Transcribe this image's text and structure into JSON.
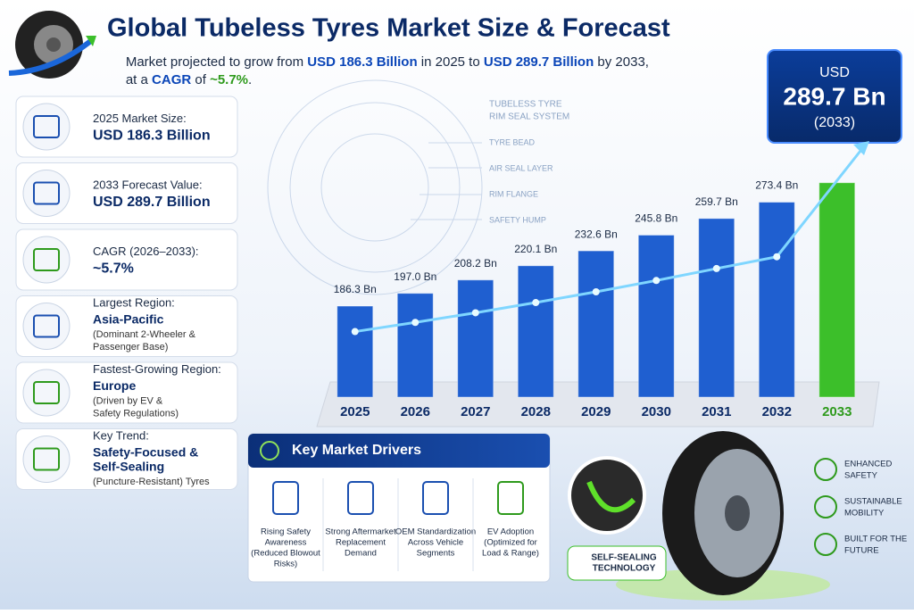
{
  "header": {
    "title": "Global Tubeless Tyres Market Size & Forecast",
    "subtitle_line1": [
      "Market projected to grow from ",
      "USD 186.3 Billion",
      " in 2025 to ",
      "USD 289.7 Billion",
      " by 2033,"
    ],
    "subtitle_line2": [
      "at a ",
      "CAGR",
      " of ",
      "~5.7%",
      "."
    ]
  },
  "cards": [
    {
      "label": "2025 Market Size:",
      "value": [
        "USD 186.3 Billion"
      ],
      "note": []
    },
    {
      "label": "2033 Forecast Value:",
      "value": [
        "USD 289.7 Billion"
      ],
      "note": []
    },
    {
      "label": "CAGR (2026–2033):",
      "value": [
        "~5.7%"
      ],
      "note": []
    },
    {
      "label": "Largest Region:",
      "value": [
        "Asia-Pacific"
      ],
      "note": [
        "(Dominant 2-Wheeler &",
        "Passenger Base)"
      ]
    },
    {
      "label": "Fastest-Growing Region:",
      "value": [
        "Europe"
      ],
      "note": [
        "(Driven by EV &",
        "Safety Regulations)"
      ]
    },
    {
      "label": "Key Trend:",
      "value": [
        "Safety-Focused &",
        "Self-Sealing"
      ],
      "note": [
        "(Puncture-Resistant) Tyres"
      ]
    }
  ],
  "diagram": {
    "title": [
      "TUBELESS TYRE",
      "RIM SEAL SYSTEM"
    ],
    "labels": [
      "TYRE BEAD",
      "AIR SEAL LAYER",
      "RIM FLANGE",
      "SAFETY HUMP"
    ]
  },
  "chart_data": {
    "type": "bar",
    "categories": [
      "2025",
      "2026",
      "2027",
      "2028",
      "2029",
      "2030",
      "2031",
      "2032",
      "2033"
    ],
    "values": [
      186.3,
      197.0,
      208.2,
      220.1,
      232.6,
      245.8,
      259.7,
      273.4,
      289.7
    ],
    "value_labels": [
      "186.3 Bn",
      "197.0 Bn",
      "208.2 Bn",
      "220.1 Bn",
      "232.6 Bn",
      "245.8 Bn",
      "259.7 Bn",
      "273.4 Bn",
      "289.7 Bn"
    ],
    "colors": [
      "#1f5fd0",
      "#1f5fd0",
      "#1f5fd0",
      "#1f5fd0",
      "#1f5fd0",
      "#1f5fd0",
      "#1f5fd0",
      "#1f5fd0",
      "#3cbf2a"
    ],
    "ylim": [
      110,
      300
    ],
    "callout": {
      "prefix": "USD",
      "suffix": "(2033)"
    }
  },
  "drivers": {
    "title": "Key Market Drivers",
    "items": [
      [
        "Rising Safety",
        "Awareness",
        "(Reduced Blowout",
        "Risks)"
      ],
      [
        "Strong Aftermarket",
        "Replacement",
        "Demand"
      ],
      [
        "OEM Standardization",
        "Across Vehicle",
        "Segments"
      ],
      [
        "EV Adoption",
        "(Optimized for",
        "Load & Range)"
      ]
    ]
  },
  "badge": [
    "SELF-SEALING",
    "TECHNOLOGY"
  ],
  "features": [
    [
      "ENHANCED",
      "SAFETY"
    ],
    [
      "SUSTAINABLE",
      "MOBILITY"
    ],
    [
      "BUILT FOR THE",
      "FUTURE"
    ]
  ]
}
